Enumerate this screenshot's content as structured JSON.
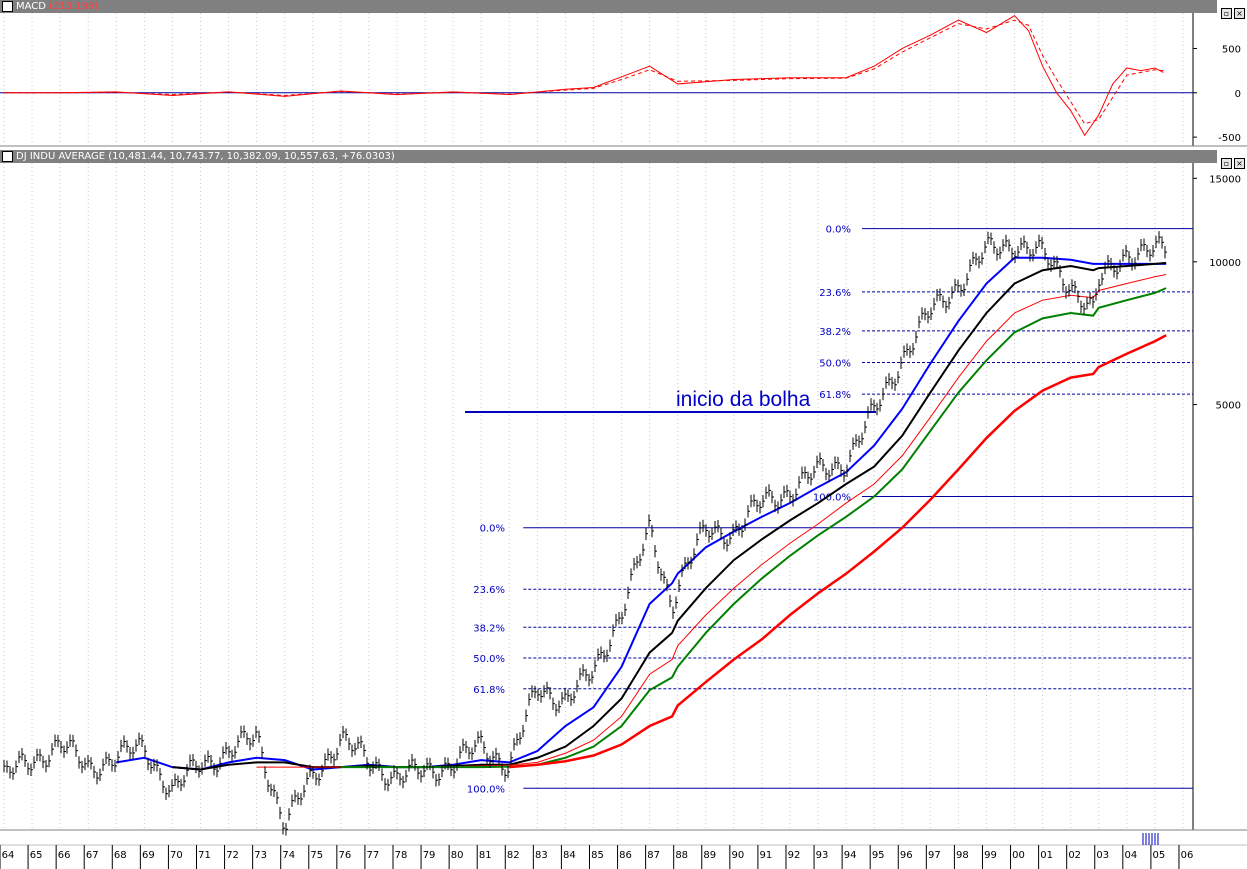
{
  "macd_panel": {
    "title": "MACD",
    "value": "(213.199)",
    "y_ticks": [
      "500",
      "0",
      "-500"
    ]
  },
  "price_panel": {
    "title": "DJ INDU AVERAGE",
    "values": "(10,481.44, 10,743.77, 10,382.09, 10,557.63, +76.0303)",
    "y_ticks": [
      "15000",
      "10000",
      "5000"
    ]
  },
  "annotation": "inicio da bolha",
  "fib_upper_labels": [
    "0.0%",
    "23.6%",
    "38.2%",
    "50.0%",
    "61.8%",
    "100.0%"
  ],
  "fib_lower_labels": [
    "0.0%",
    "23.6%",
    "38.2%",
    "50.0%",
    "61.8%",
    "100.0%"
  ],
  "x_labels": [
    "64",
    "65",
    "66",
    "67",
    "68",
    "69",
    "70",
    "71",
    "72",
    "73",
    "74",
    "75",
    "76",
    "77",
    "78",
    "79",
    "80",
    "81",
    "82",
    "83",
    "84",
    "85",
    "86",
    "87",
    "88",
    "89",
    "90",
    "91",
    "92",
    "93",
    "94",
    "95",
    "96",
    "97",
    "98",
    "99",
    "00",
    "01",
    "02",
    "03",
    "04",
    "05",
    "06"
  ],
  "colors": {
    "price": "#000000",
    "ma_blue": "#0000ff",
    "ma_black": "#000000",
    "ma_thin_red": "#ff0000",
    "ma_green": "#008000",
    "ma_red": "#ff0000",
    "fib": "#0000a0",
    "macd": "#ff0000"
  },
  "chart_data": [
    {
      "type": "line",
      "title": "MACD",
      "y_ticks": [
        500,
        0,
        -500
      ],
      "ylim": [
        -600,
        900
      ],
      "x": [
        1964,
        1966,
        1968,
        1970,
        1972,
        1974,
        1976,
        1978,
        1980,
        1982,
        1984,
        1985,
        1986,
        1987,
        1988,
        1990,
        1992,
        1994,
        1995,
        1996,
        1997,
        1998,
        1999,
        2000,
        2000.5,
        2001,
        2001.5,
        2002,
        2002.5,
        2003,
        2003.5,
        2004,
        2004.5,
        2005,
        2005.3
      ],
      "series": [
        {
          "values": [
            0,
            0,
            10,
            -30,
            10,
            -40,
            20,
            -20,
            10,
            -20,
            40,
            60,
            180,
            300,
            100,
            150,
            170,
            170,
            300,
            500,
            650,
            820,
            680,
            870,
            700,
            300,
            0,
            -200,
            -480,
            -250,
            100,
            280,
            250,
            280,
            230
          ]
        },
        {
          "values": [
            0,
            0,
            5,
            -20,
            10,
            -30,
            15,
            -15,
            5,
            -15,
            30,
            50,
            150,
            260,
            130,
            140,
            160,
            165,
            270,
            460,
            620,
            780,
            720,
            820,
            760,
            420,
            150,
            -100,
            -350,
            -300,
            -50,
            200,
            230,
            260,
            250
          ]
        }
      ]
    },
    {
      "type": "line",
      "title": "DJ INDU AVERAGE",
      "scale": "log",
      "y_ticks": [
        15000,
        10000,
        5000
      ],
      "ylim": [
        640,
        16000
      ],
      "xlim": [
        1964,
        2006.5
      ],
      "x": [
        1964,
        1965,
        1966,
        1967,
        1968,
        1969,
        1970,
        1971,
        1972,
        1973,
        1974,
        1975,
        1976,
        1977,
        1978,
        1979,
        1980,
        1981,
        1982,
        1983,
        1984,
        1985,
        1986,
        1987,
        1987.8,
        1988,
        1989,
        1990,
        1991,
        1992,
        1993,
        1994,
        1995,
        1996,
        1997,
        1998,
        1999,
        2000,
        2001,
        2002,
        2002.8,
        2003,
        2004,
        2005,
        2005.4
      ],
      "series": [
        {
          "name": "Price",
          "values": [
            820,
            890,
            960,
            860,
            900,
            950,
            760,
            880,
            920,
            1000,
            650,
            820,
            990,
            880,
            820,
            840,
            880,
            950,
            870,
            1250,
            1200,
            1350,
            1850,
            2700,
            1900,
            2100,
            2700,
            2700,
            3100,
            3300,
            3600,
            3800,
            4800,
            6300,
            7800,
            9000,
            10500,
            11000,
            10300,
            9000,
            7800,
            9000,
            10500,
            10500,
            10550
          ]
        },
        {
          "name": "MA blue",
          "values": [
            null,
            null,
            null,
            null,
            880,
            900,
            860,
            850,
            880,
            900,
            890,
            850,
            860,
            870,
            860,
            860,
            870,
            890,
            880,
            930,
            1050,
            1150,
            1400,
            1900,
            2100,
            2200,
            2500,
            2700,
            2900,
            3100,
            3350,
            3600,
            4100,
            4900,
            6100,
            7500,
            9000,
            10200,
            10200,
            10100,
            9900,
            9900,
            9900,
            9900,
            9900
          ]
        },
        {
          "name": "MA black",
          "values": [
            null,
            null,
            null,
            null,
            null,
            null,
            860,
            850,
            870,
            880,
            880,
            860,
            860,
            865,
            860,
            860,
            865,
            870,
            870,
            900,
            950,
            1050,
            1200,
            1500,
            1650,
            1750,
            2050,
            2350,
            2600,
            2850,
            3100,
            3400,
            3700,
            4300,
            5300,
            6500,
            7800,
            9000,
            9600,
            9800,
            9600,
            9700,
            9800,
            9900,
            9950
          ]
        },
        {
          "name": "MA thin red",
          "values": [
            null,
            null,
            null,
            null,
            null,
            null,
            null,
            null,
            null,
            860,
            860,
            860,
            860,
            860,
            860,
            860,
            862,
            865,
            868,
            880,
            920,
            980,
            1100,
            1350,
            1450,
            1550,
            1800,
            2050,
            2300,
            2550,
            2800,
            3100,
            3400,
            3900,
            4700,
            5700,
            6800,
            7800,
            8300,
            8500,
            8400,
            8700,
            9000,
            9300,
            9400
          ]
        },
        {
          "name": "MA green",
          "values": [
            null,
            null,
            null,
            null,
            null,
            null,
            null,
            null,
            null,
            null,
            null,
            null,
            860,
            860,
            860,
            860,
            860,
            860,
            862,
            870,
            900,
            950,
            1050,
            1250,
            1330,
            1400,
            1650,
            1900,
            2150,
            2400,
            2650,
            2900,
            3200,
            3650,
            4400,
            5300,
            6200,
            7100,
            7600,
            7800,
            7700,
            8000,
            8300,
            8600,
            8800
          ]
        },
        {
          "name": "MA red",
          "values": [
            null,
            null,
            null,
            null,
            null,
            null,
            null,
            null,
            null,
            null,
            null,
            null,
            null,
            null,
            null,
            null,
            null,
            null,
            860,
            870,
            885,
            910,
            960,
            1050,
            1100,
            1160,
            1300,
            1450,
            1600,
            1800,
            2000,
            2200,
            2450,
            2750,
            3150,
            3650,
            4250,
            4850,
            5350,
            5700,
            5800,
            6000,
            6400,
            6800,
            7000
          ]
        }
      ]
    }
  ]
}
